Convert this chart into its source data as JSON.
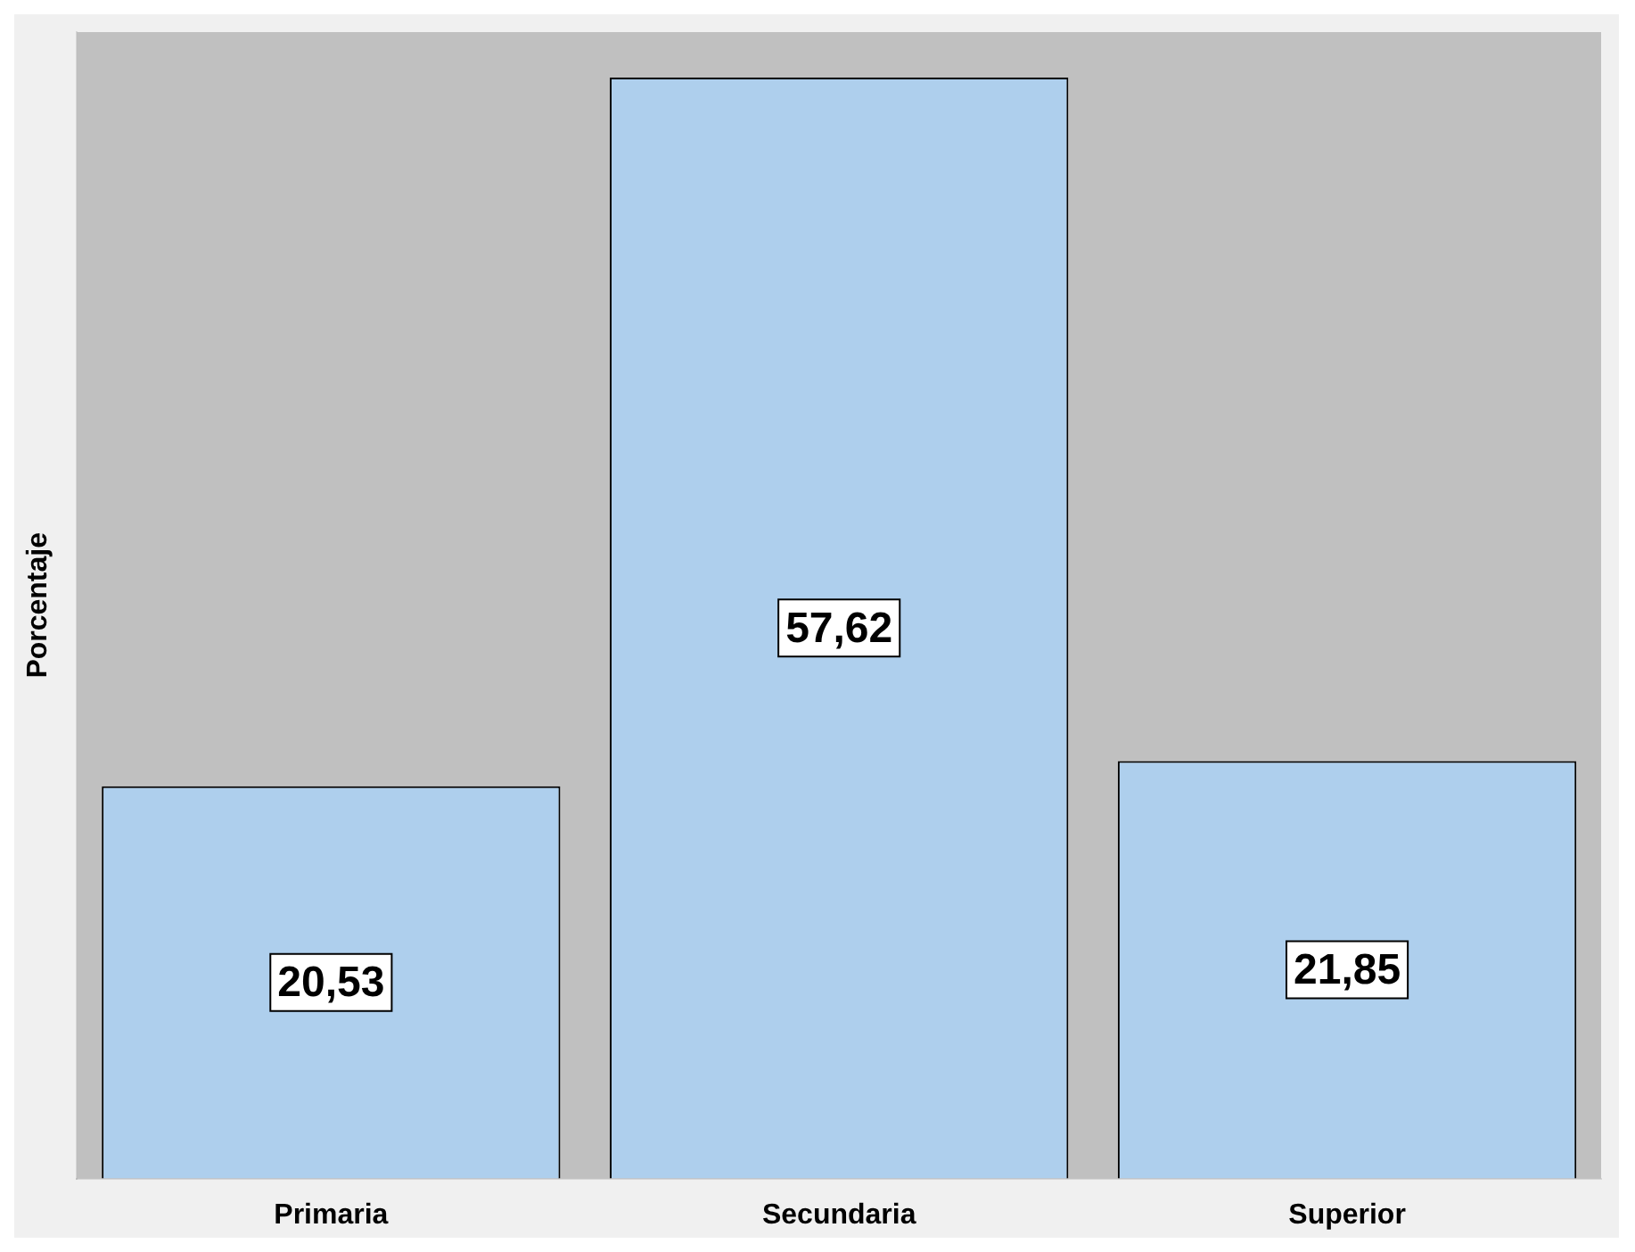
{
  "chart_data": {
    "type": "bar",
    "ylabel": "Porcentaje",
    "categories": [
      "Primaria",
      "Secundaria",
      "Superior"
    ],
    "values": [
      20.53,
      57.62,
      21.85
    ],
    "value_labels": [
      "20,53",
      "57,62",
      "21,85"
    ],
    "color": "#aecfed",
    "grid": false,
    "legend": false
  }
}
